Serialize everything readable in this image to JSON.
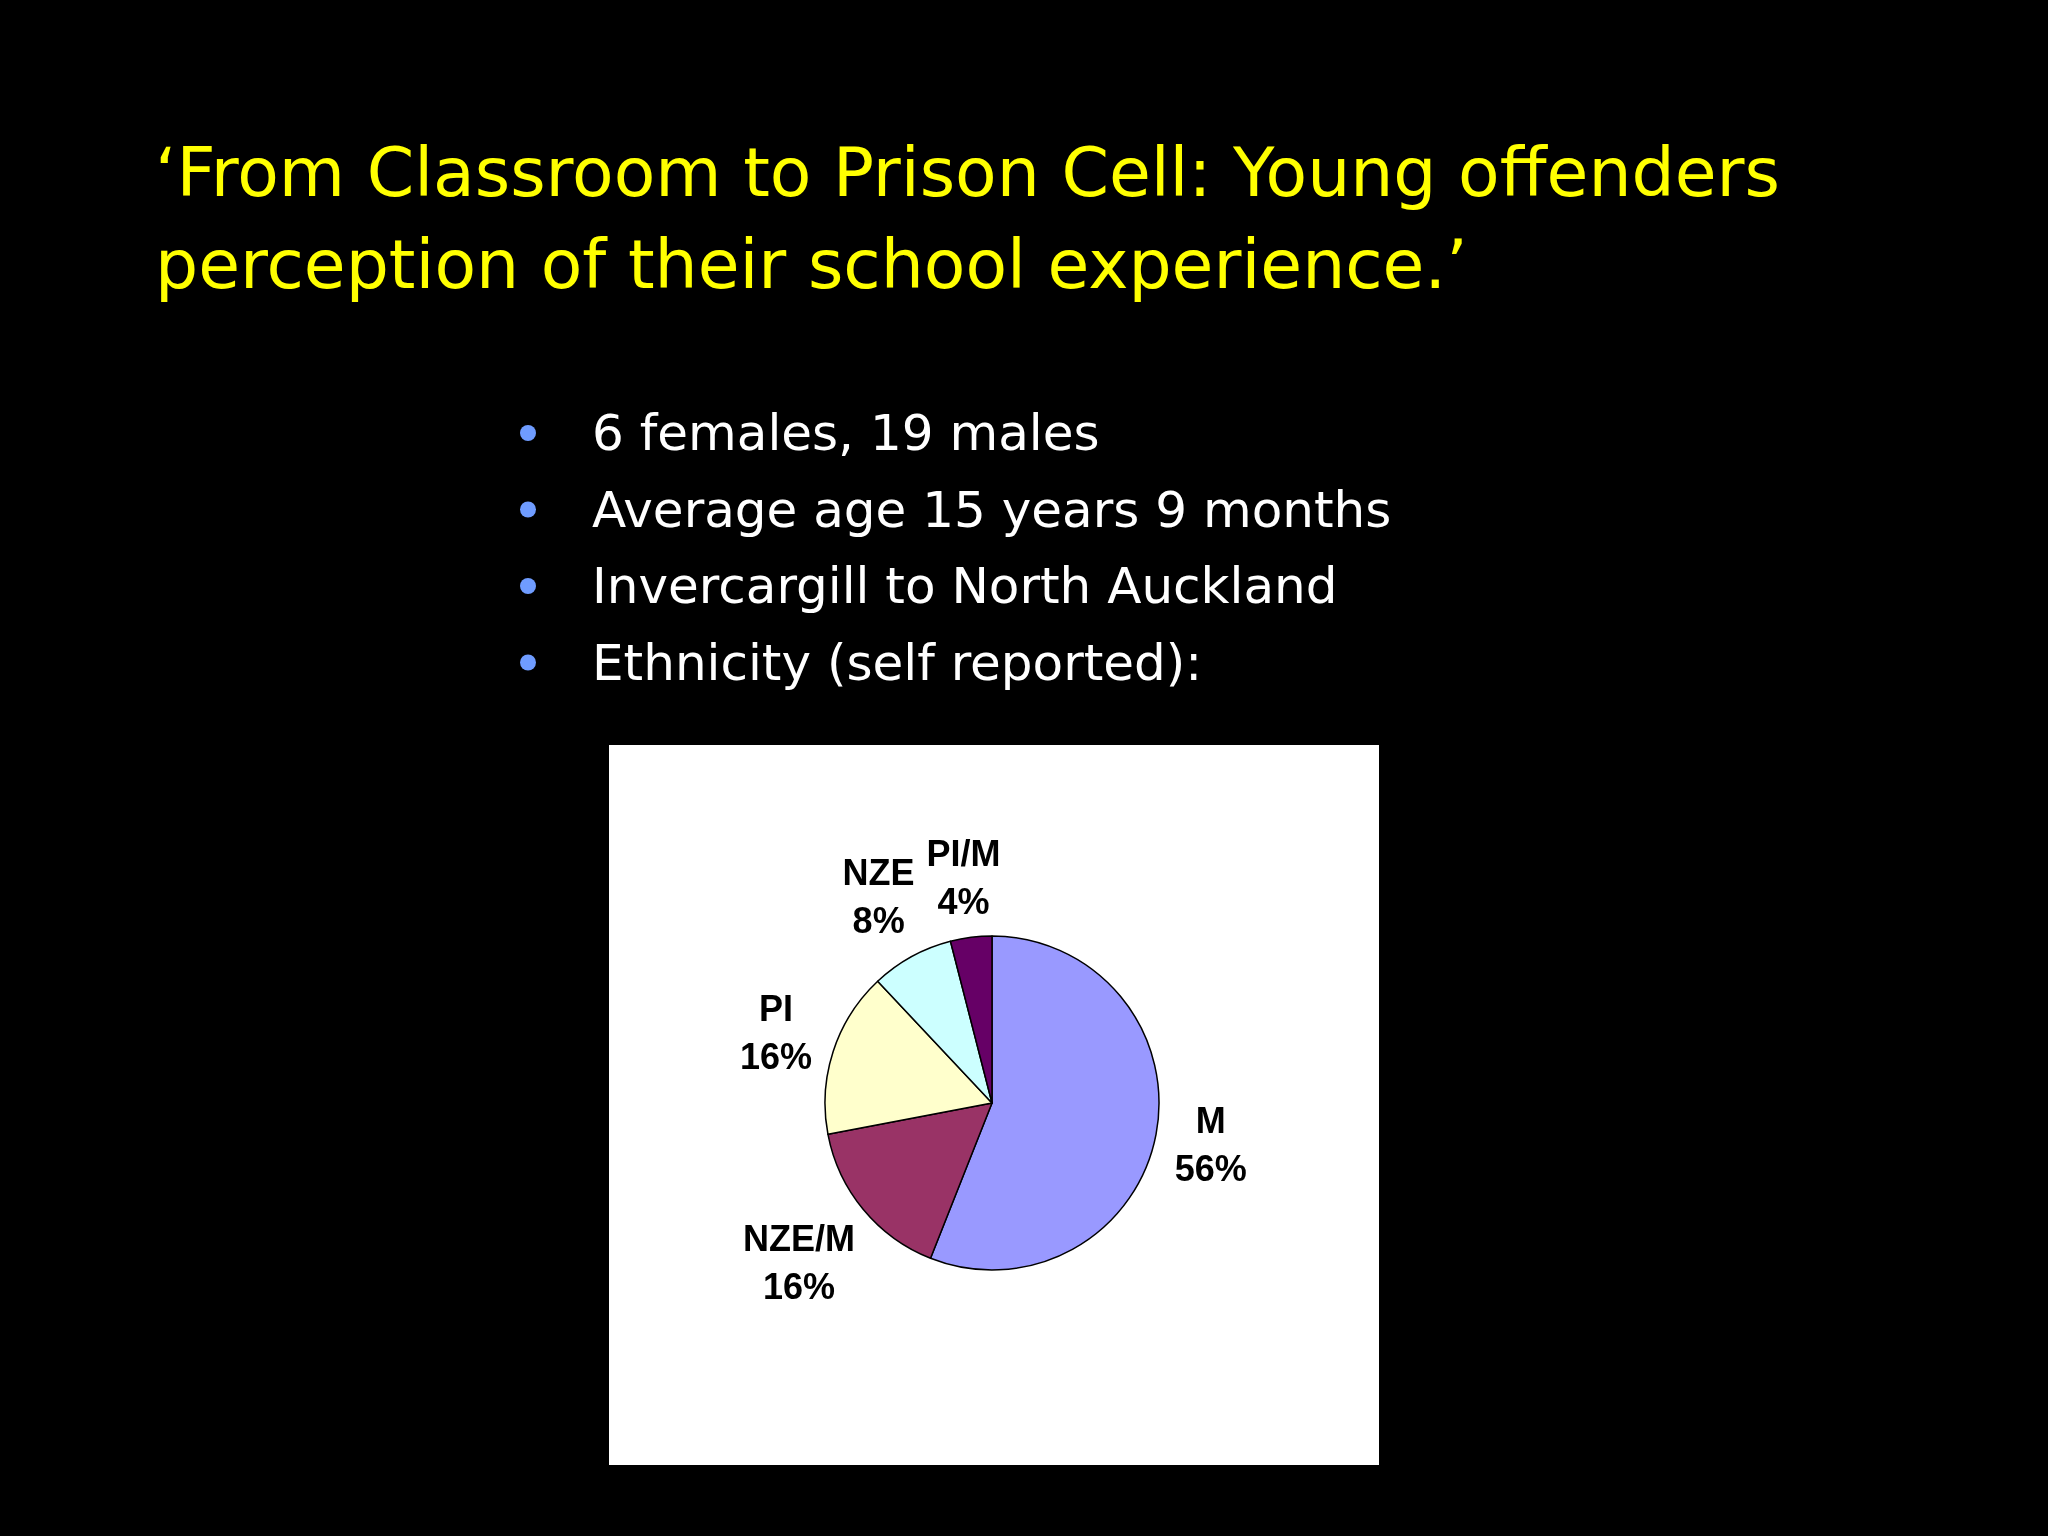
{
  "chart_data": {
    "type": "pie",
    "title": "‘From Classroom to Prison Cell: Young offenders perception of their school experience.’",
    "annotations": [
      "6 females, 19 males",
      "Average age 15 years 9 months",
      "Invercargill to North Auckland",
      "Ethnicity (self reported):"
    ],
    "categories": [
      "M",
      "NZE/M",
      "PI",
      "NZE",
      "PI/M"
    ],
    "values": [
      56,
      16,
      16,
      8,
      4
    ],
    "value_labels": [
      "56%",
      "16%",
      "16%",
      "8%",
      "4%"
    ],
    "colors": [
      "#9999ff",
      "#993366",
      "#ffffcc",
      "#ccffff",
      "#660066"
    ]
  }
}
